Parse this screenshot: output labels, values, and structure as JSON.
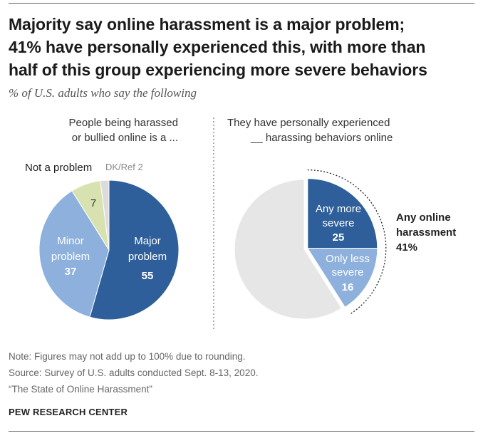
{
  "title_lines": [
    "Majority say online harassment is a major problem;",
    "41% have personally experienced this, with more than",
    "half of this group experiencing more severe behaviors"
  ],
  "subtitle": "% of U.S. adults who say the following",
  "chart_data": [
    {
      "type": "pie",
      "header_lines": [
        "People being harassed",
        "or bullied online is a ..."
      ],
      "slices": [
        {
          "label_lines": [
            "Major",
            "problem"
          ],
          "value": 55,
          "value_label": "55",
          "color": "#2e5f9a"
        },
        {
          "label_lines": [
            "Minor",
            "problem"
          ],
          "value": 37,
          "value_label": "37",
          "color": "#8db0dc"
        },
        {
          "label_lines": [
            "Not a problem"
          ],
          "value": 7,
          "value_label": "7",
          "color": "#d8e2b1"
        },
        {
          "label_lines": [
            "DK/Ref 2"
          ],
          "value": 2,
          "value_label": "",
          "color": "#dcdcdc"
        }
      ]
    },
    {
      "type": "pie",
      "header_lines": [
        "They have personally experienced",
        "__ harassing behaviors online"
      ],
      "slices": [
        {
          "label_lines": [
            "Any more",
            "severe"
          ],
          "value": 25,
          "value_label": "25",
          "color": "#2e5f9a"
        },
        {
          "label_lines": [
            "Only less",
            "severe"
          ],
          "value": 16,
          "value_label": "16",
          "color": "#8db0dc"
        },
        {
          "label_lines": [],
          "value": 59,
          "value_label": "",
          "color": "#e6e6e6"
        }
      ],
      "bracket_label_lines": [
        "Any online",
        "harassment",
        "41%"
      ]
    }
  ],
  "notes": [
    "Note: Figures may not add up to 100% due to rounding.",
    "Source: Survey of U.S. adults conducted Sept. 8-13, 2020.",
    "“The State of Online Harassment”"
  ],
  "source_org": "PEW RESEARCH CENTER"
}
